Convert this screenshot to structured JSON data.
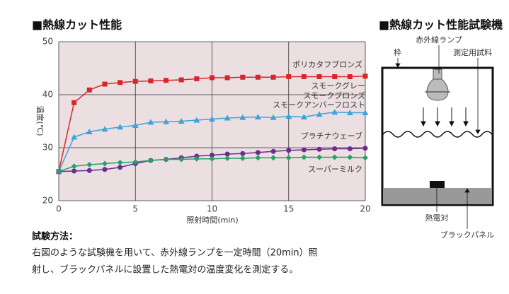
{
  "chart_data": {
    "type": "line",
    "title": "■熱線カット性能",
    "xlabel": "照射時間(min)",
    "ylabel": "温度(℃)",
    "x": [
      0,
      1,
      2,
      3,
      4,
      5,
      6,
      7,
      8,
      9,
      10,
      11,
      12,
      13,
      14,
      15,
      16,
      17,
      18,
      19,
      20
    ],
    "xlim": [
      0,
      20
    ],
    "xticks": [
      0,
      5,
      10,
      15,
      20
    ],
    "ylim": [
      20,
      50
    ],
    "yticks": [
      20,
      30,
      40,
      50
    ],
    "grid": true,
    "series": [
      {
        "name": "ポリカタフブロンズ",
        "color": "#d9262b",
        "marker": "square",
        "values": [
          25.5,
          38.5,
          40.9,
          42,
          42.3,
          42.5,
          42.6,
          42.7,
          42.8,
          43,
          43.2,
          43.2,
          43.3,
          43.3,
          43.3,
          43.4,
          43.4,
          43.4,
          43.4,
          43.4,
          43.5
        ]
      },
      {
        "name": [
          "スモークグレー",
          "スモークブロンズ",
          "スモークアンバーフロスト"
        ],
        "color": "#3ea3d9",
        "marker": "triangle",
        "values": [
          25.5,
          32,
          33,
          33.5,
          33.9,
          34.2,
          34.8,
          34.9,
          35,
          35.2,
          35.4,
          35.6,
          35.7,
          35.8,
          35.7,
          35.9,
          35.8,
          36.3,
          36.7,
          36.6,
          36.6
        ]
      },
      {
        "name": "プラチナウェーブ",
        "color": "#6a2c8e",
        "marker": "circle",
        "values": [
          25.5,
          25.6,
          25.7,
          25.9,
          26.3,
          27,
          27.6,
          27.8,
          28.1,
          28.4,
          28.6,
          28.8,
          28.9,
          29.1,
          29.3,
          29.5,
          29.6,
          29.7,
          29.8,
          29.8,
          29.9
        ]
      },
      {
        "name": "スーパーミルク",
        "color": "#27a06a",
        "marker": "diamond",
        "values": [
          25.5,
          26.5,
          26.8,
          27,
          27.2,
          27.3,
          27.6,
          27.8,
          27.8,
          27.9,
          27.9,
          28,
          28,
          28.1,
          28.1,
          28.1,
          28.2,
          28.2,
          28.2,
          28.2,
          28.1
        ]
      }
    ]
  },
  "method": {
    "heading": "試験方法：",
    "lines": [
      "右図のような試験機を用いて、赤外線ランプを一定時間（20min）照",
      "射し、ブラックパネルに設置した熱電対の温度変化を測定する。"
    ]
  },
  "diagram": {
    "title": "■熱線カット性能試験機",
    "frame": "枠",
    "lamp": "赤外線ランプ",
    "sample": "測定用試料",
    "thermocouple": "熱電対",
    "panel": "ブラックパネル"
  }
}
